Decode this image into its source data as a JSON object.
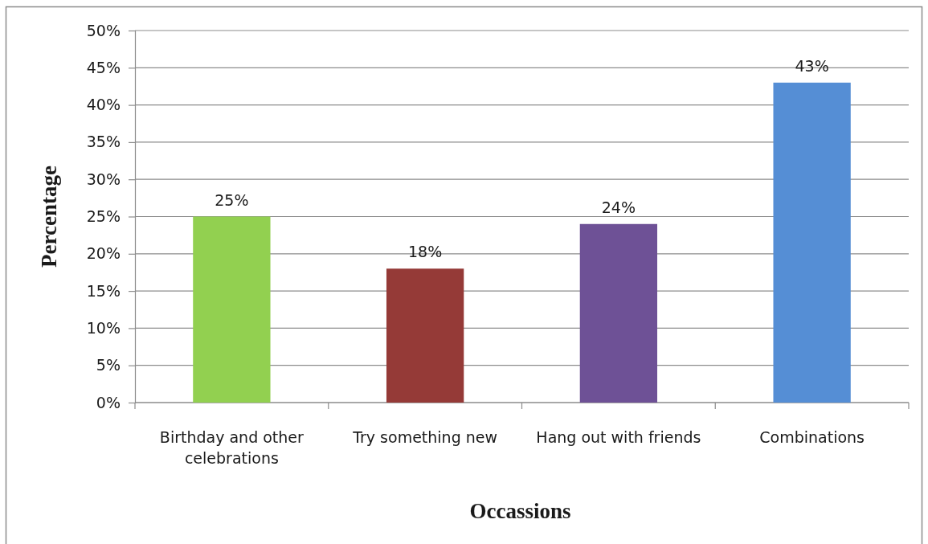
{
  "chart_data": {
    "type": "bar",
    "xlabel": "Occassions",
    "ylabel": "Percentage",
    "categories": [
      "Birthday and other celebrations",
      "Try something new",
      "Hang out with friends",
      "Combinations"
    ],
    "values": [
      25,
      18,
      24,
      43
    ],
    "colors": [
      "#92d050",
      "#953a37",
      "#6e5196",
      "#558ed5"
    ],
    "value_labels": [
      "25%",
      "18%",
      "24%",
      "43%"
    ],
    "ylim": [
      0,
      50
    ],
    "yticks": [
      {
        "value": 0,
        "label": "0%"
      },
      {
        "value": 5,
        "label": "5%"
      },
      {
        "value": 10,
        "label": "10%"
      },
      {
        "value": 15,
        "label": "15%"
      },
      {
        "value": 20,
        "label": "20%"
      },
      {
        "value": 25,
        "label": "25%"
      },
      {
        "value": 30,
        "label": "30%"
      },
      {
        "value": 35,
        "label": "35%"
      },
      {
        "value": 40,
        "label": "40%"
      },
      {
        "value": 45,
        "label": "45%"
      },
      {
        "value": 50,
        "label": "50%"
      }
    ],
    "grid": "y"
  }
}
